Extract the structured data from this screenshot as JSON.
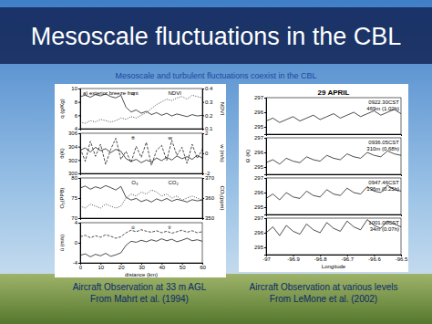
{
  "title": "Mesoscale fluctuations in the CBL",
  "subtitle": "Mesoscale and turbulent fluctuations coexist in the CBL",
  "captions": [
    [
      "Aircraft Observation at 33 m AGL",
      "From Mahrt et al. (1994)"
    ],
    [
      "Aircraft Observation at various levels",
      "From LeMone et al. (2002)"
    ]
  ],
  "chart_data": [
    {
      "type": "line",
      "title": "a) exterior breeze front",
      "x": [
        0,
        2.5,
        5,
        7.5,
        10,
        12.5,
        15,
        17.5,
        20,
        22.5,
        25,
        27.5,
        30,
        32.5,
        35,
        37.5,
        40,
        42.5,
        45,
        47.5,
        50,
        52.5,
        55,
        57.5,
        60
      ],
      "xlim": [
        0,
        60
      ],
      "ylim": [
        4,
        10
      ],
      "yticks": [
        4,
        6,
        8,
        10
      ],
      "ylabel": "q (g/Kg)",
      "y2lim": [
        0.1,
        0.4
      ],
      "y2ticks": [
        0.1,
        0.2,
        0.3,
        0.4
      ],
      "y2label": "NDVI",
      "series": [
        {
          "name": "q",
          "color": "#000000",
          "values": [
            8.8,
            9.0,
            8.7,
            9.1,
            8.9,
            9.2,
            8.8,
            8.6,
            9.0,
            7.2,
            6.5,
            6.8,
            6.3,
            6.6,
            6.1,
            6.4,
            6.0,
            6.3,
            5.9,
            6.2,
            6.0,
            5.8,
            6.1,
            5.9,
            6.0
          ]
        },
        {
          "name": "NDVI",
          "color": "#000000",
          "line_style": "dotted",
          "axis": "y2",
          "values": [
            0.15,
            0.14,
            0.16,
            0.15,
            0.17,
            0.16,
            0.15,
            0.16,
            0.18,
            0.17,
            0.19,
            0.18,
            0.2,
            0.22,
            0.25,
            0.28,
            0.3,
            0.32,
            0.31,
            0.33,
            0.34,
            0.32,
            0.35,
            0.34,
            0.33
          ]
        }
      ]
    },
    {
      "type": "line",
      "x": [
        0,
        2.5,
        5,
        7.5,
        10,
        12.5,
        15,
        17.5,
        20,
        22.5,
        25,
        27.5,
        30,
        32.5,
        35,
        37.5,
        40,
        42.5,
        45,
        47.5,
        50,
        52.5,
        55,
        57.5,
        60
      ],
      "xlim": [
        0,
        60
      ],
      "ylim": [
        300,
        306
      ],
      "yticks": [
        300,
        302,
        304,
        306
      ],
      "ylabel": "θ(K)",
      "y2lim": [
        -2,
        2
      ],
      "y2ticks": [
        -2,
        0,
        2
      ],
      "y2label": "w (m/s)",
      "series": [
        {
          "name": "θ",
          "color": "#000000",
          "values": [
            303.5,
            303.8,
            303.2,
            303.9,
            303.4,
            303.7,
            303.1,
            303.6,
            303.3,
            302.2,
            301.8,
            302.1,
            301.6,
            302.0,
            301.7,
            302.3,
            301.9,
            302.4,
            302.0,
            302.6,
            302.2,
            302.5,
            302.1,
            302.7,
            302.3
          ]
        },
        {
          "name": "w",
          "color": "#000000",
          "line_style": "dashed",
          "axis": "y2",
          "values": [
            0.5,
            -0.8,
            1.2,
            -0.3,
            0.9,
            -1.1,
            0.4,
            1.5,
            -0.6,
            0.2,
            -0.9,
            0.7,
            -0.4,
            1.1,
            -1.2,
            0.3,
            0.8,
            -0.7,
            1.3,
            -0.2,
            0.6,
            -1.0,
            0.9,
            -0.5,
            0.4
          ]
        }
      ]
    },
    {
      "type": "line",
      "x": [
        0,
        2.5,
        5,
        7.5,
        10,
        12.5,
        15,
        17.5,
        20,
        22.5,
        25,
        27.5,
        30,
        32.5,
        35,
        37.5,
        40,
        42.5,
        45,
        47.5,
        50,
        52.5,
        55,
        57.5,
        60
      ],
      "xlim": [
        0,
        60
      ],
      "ylim": [
        70,
        80
      ],
      "yticks": [
        70,
        75,
        80
      ],
      "ylabel": "O₃(PPB)",
      "y2lim": [
        350,
        370
      ],
      "y2ticks": [
        350,
        360,
        370
      ],
      "y2label": "CO₂(ppm)",
      "series": [
        {
          "name": "O₃",
          "color": "#000000",
          "values": [
            77.5,
            78,
            77.2,
            77.8,
            77.4,
            78.1,
            77.6,
            77.0,
            77.9,
            75.2,
            74.5,
            74.9,
            74.1,
            74.6,
            74.0,
            74.8,
            74.3,
            74.9,
            74.2,
            74.7,
            74.4,
            74.0,
            74.6,
            74.3,
            74.5
          ]
        },
        {
          "name": "CO₂",
          "color": "#000000",
          "line_style": "dotted",
          "axis": "y2",
          "values": [
            356,
            355,
            357,
            356,
            355,
            357,
            356,
            355,
            356,
            360,
            362,
            361,
            363,
            362,
            364,
            363,
            361,
            362,
            360,
            361,
            359,
            360,
            361,
            360,
            359
          ]
        }
      ]
    },
    {
      "type": "line",
      "x": [
        0,
        2.5,
        5,
        7.5,
        10,
        12.5,
        15,
        17.5,
        20,
        22.5,
        25,
        27.5,
        30,
        32.5,
        35,
        37.5,
        40,
        42.5,
        45,
        47.5,
        50,
        52.5,
        55,
        57.5,
        60
      ],
      "xlim": [
        0,
        60
      ],
      "xticks": [
        0,
        10,
        20,
        30,
        40,
        50,
        60
      ],
      "xlabel": "distance (km)",
      "ylim": [
        -4,
        4
      ],
      "yticks": [
        -4,
        0,
        4
      ],
      "ylabel": "ū (m/s)",
      "series": [
        {
          "name": "ū",
          "color": "#000000",
          "values": [
            -2.5,
            -2.2,
            -2.8,
            -2.3,
            -2.6,
            -2.1,
            -2.7,
            -2.4,
            -2.0,
            -0.5,
            0.3,
            0.1,
            0.5,
            0.2,
            0.6,
            0.3,
            0.8,
            0.4,
            0.7,
            0.2,
            0.5,
            0.9,
            0.4,
            0.6,
            0.3
          ]
        },
        {
          "name": "v̄",
          "color": "#000000",
          "line_style": "dashed",
          "values": [
            1.2,
            1.5,
            1.0,
            1.4,
            1.1,
            1.6,
            1.3,
            0.9,
            1.2,
            2.0,
            2.5,
            2.2,
            2.6,
            2.3,
            2.1,
            2.4,
            2.0,
            2.3,
            1.9,
            2.2,
            2.5,
            2.1,
            2.4,
            2.0,
            2.2
          ]
        }
      ]
    },
    {
      "type": "line",
      "title": "29 APRIL",
      "annotations": [
        "0922.30CST",
        "469m (1.02h)"
      ],
      "x": [
        -97,
        -96.975,
        -96.95,
        -96.925,
        -96.9,
        -96.875,
        -96.85,
        -96.825,
        -96.8,
        -96.775,
        -96.75,
        -96.725,
        -96.7,
        -96.675,
        -96.65,
        -96.625,
        -96.6,
        -96.575,
        -96.55,
        -96.525,
        -96.5
      ],
      "xlim": [
        -97,
        -96.5
      ],
      "ylim": [
        294.5,
        297
      ],
      "yticks": [
        295,
        296,
        297
      ],
      "series": [
        {
          "color": "#000000",
          "values": [
            295.4,
            295.6,
            295.3,
            295.5,
            295.7,
            295.4,
            295.6,
            295.8,
            295.5,
            295.7,
            295.9,
            295.6,
            295.8,
            296.0,
            295.7,
            295.9,
            296.1,
            295.8,
            296.0,
            296.2,
            295.9
          ]
        }
      ]
    },
    {
      "type": "line",
      "annotations": [
        "0936.05CST",
        "310m (0.68h)"
      ],
      "ylabel": "Θ (K)",
      "x": [
        -97,
        -96.975,
        -96.95,
        -96.925,
        -96.9,
        -96.875,
        -96.85,
        -96.825,
        -96.8,
        -96.775,
        -96.75,
        -96.725,
        -96.7,
        -96.675,
        -96.65,
        -96.625,
        -96.6,
        -96.575,
        -96.55,
        -96.525,
        -96.5
      ],
      "xlim": [
        -97,
        -96.5
      ],
      "ylim": [
        294.5,
        297
      ],
      "yticks": [
        295,
        296,
        297
      ],
      "series": [
        {
          "color": "#000000",
          "values": [
            295.3,
            295.5,
            295.2,
            295.6,
            295.4,
            295.3,
            295.7,
            295.5,
            295.4,
            295.8,
            295.6,
            295.5,
            295.9,
            295.7,
            295.6,
            296.0,
            295.8,
            295.7,
            296.1,
            295.9,
            295.8
          ]
        }
      ]
    },
    {
      "type": "line",
      "annotations": [
        "0947.46CST",
        "136m (0.25h)"
      ],
      "x": [
        -97,
        -96.975,
        -96.95,
        -96.925,
        -96.9,
        -96.875,
        -96.85,
        -96.825,
        -96.8,
        -96.775,
        -96.75,
        -96.725,
        -96.7,
        -96.675,
        -96.65,
        -96.625,
        -96.6,
        -96.575,
        -96.55,
        -96.525,
        -96.5
      ],
      "xlim": [
        -97,
        -96.5
      ],
      "ylim": [
        294.5,
        297
      ],
      "yticks": [
        295,
        296,
        297
      ],
      "series": [
        {
          "color": "#000000",
          "values": [
            295.6,
            295.9,
            295.5,
            296.0,
            295.7,
            295.6,
            296.1,
            295.8,
            295.7,
            296.2,
            295.9,
            295.8,
            296.3,
            296.0,
            295.9,
            296.4,
            296.1,
            296.0,
            296.5,
            296.2,
            296.1
          ]
        }
      ]
    },
    {
      "type": "line",
      "annotations": [
        "1001.00CST",
        "34m (0.07h)"
      ],
      "xlabel": "Longitude",
      "x": [
        -97,
        -96.975,
        -96.95,
        -96.925,
        -96.9,
        -96.875,
        -96.85,
        -96.825,
        -96.8,
        -96.775,
        -96.75,
        -96.725,
        -96.7,
        -96.675,
        -96.65,
        -96.625,
        -96.6,
        -96.575,
        -96.55,
        -96.525,
        -96.5
      ],
      "xlim": [
        -97,
        -96.5
      ],
      "xticks": [
        -97,
        -96.9,
        -96.8,
        -96.7,
        -96.6,
        -96.5
      ],
      "ylim": [
        294.5,
        297
      ],
      "yticks": [
        295,
        296,
        297
      ],
      "series": [
        {
          "color": "#000000",
          "values": [
            296.0,
            296.4,
            295.8,
            296.5,
            296.1,
            295.9,
            296.6,
            296.2,
            296.0,
            296.7,
            296.3,
            296.1,
            296.8,
            296.4,
            296.2,
            296.9,
            296.5,
            296.3,
            296.8,
            296.6,
            296.4
          ]
        }
      ]
    }
  ]
}
